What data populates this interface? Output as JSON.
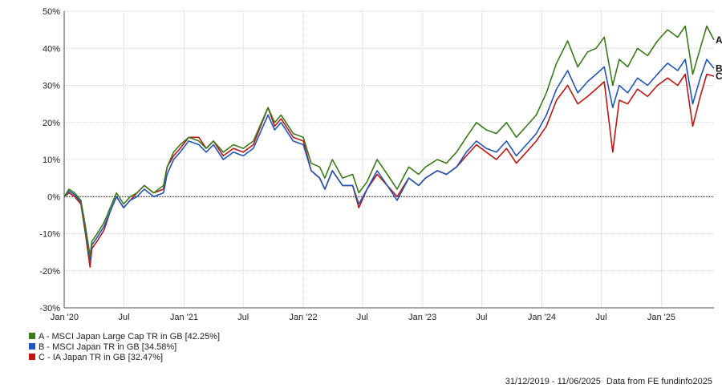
{
  "chart_data": {
    "type": "line",
    "x_range": [
      "2019-12-31",
      "2025-06-11"
    ],
    "ylim": [
      -30,
      50
    ],
    "y_ticks": [
      {
        "value": 50,
        "label": "50%"
      },
      {
        "value": 40,
        "label": "40%"
      },
      {
        "value": 30,
        "label": "30%"
      },
      {
        "value": 20,
        "label": "20%"
      },
      {
        "value": 10,
        "label": "10%"
      },
      {
        "value": 0,
        "label": "0%"
      },
      {
        "value": -10,
        "label": "-10%"
      },
      {
        "value": -20,
        "label": "-20%"
      },
      {
        "value": -30,
        "label": "-30%"
      }
    ],
    "x_ticks": [
      {
        "date": "2020-01-01",
        "label": "Jan '20"
      },
      {
        "date": "2020-07-01",
        "label": "Jul"
      },
      {
        "date": "2021-01-01",
        "label": "Jan '21"
      },
      {
        "date": "2021-07-01",
        "label": "Jul"
      },
      {
        "date": "2022-01-01",
        "label": "Jan '22"
      },
      {
        "date": "2022-07-01",
        "label": "Jul"
      },
      {
        "date": "2023-01-01",
        "label": "Jan '23"
      },
      {
        "date": "2023-07-01",
        "label": "Jul"
      },
      {
        "date": "2024-01-01",
        "label": "Jan '24"
      },
      {
        "date": "2024-07-01",
        "label": "Jul"
      },
      {
        "date": "2025-01-01",
        "label": "Jan '25"
      }
    ],
    "grid": true,
    "legend_position": "bottom-left",
    "series": [
      {
        "key": "A",
        "name": "A - MSCI Japan Large Cap TR in GB [42.25%]",
        "end_label": "A",
        "color": "#3a7a1a",
        "points": [
          [
            "2019-12-31",
            0
          ],
          [
            "2020-01-15",
            2
          ],
          [
            "2020-02-01",
            1
          ],
          [
            "2020-02-20",
            -1
          ],
          [
            "2020-03-05",
            -8
          ],
          [
            "2020-03-19",
            -16
          ],
          [
            "2020-03-25",
            -12
          ],
          [
            "2020-04-10",
            -10
          ],
          [
            "2020-05-01",
            -7
          ],
          [
            "2020-05-20",
            -3
          ],
          [
            "2020-06-08",
            1
          ],
          [
            "2020-06-30",
            -2
          ],
          [
            "2020-07-20",
            0
          ],
          [
            "2020-08-10",
            1
          ],
          [
            "2020-09-01",
            3
          ],
          [
            "2020-09-30",
            1
          ],
          [
            "2020-10-30",
            3
          ],
          [
            "2020-11-10",
            8
          ],
          [
            "2020-11-30",
            12
          ],
          [
            "2020-12-20",
            14
          ],
          [
            "2021-01-15",
            16
          ],
          [
            "2021-02-15",
            15
          ],
          [
            "2021-03-10",
            13
          ],
          [
            "2021-04-01",
            15
          ],
          [
            "2021-05-01",
            12
          ],
          [
            "2021-06-01",
            14
          ],
          [
            "2021-07-01",
            13
          ],
          [
            "2021-08-01",
            15
          ],
          [
            "2021-09-15",
            24
          ],
          [
            "2021-10-05",
            20
          ],
          [
            "2021-10-25",
            22
          ],
          [
            "2021-12-01",
            17
          ],
          [
            "2022-01-01",
            16
          ],
          [
            "2022-01-25",
            9
          ],
          [
            "2022-02-20",
            8
          ],
          [
            "2022-03-08",
            5
          ],
          [
            "2022-03-31",
            10
          ],
          [
            "2022-05-01",
            5
          ],
          [
            "2022-06-01",
            6
          ],
          [
            "2022-06-20",
            1
          ],
          [
            "2022-07-15",
            4
          ],
          [
            "2022-08-15",
            10
          ],
          [
            "2022-09-15",
            6
          ],
          [
            "2022-10-15",
            2
          ],
          [
            "2022-11-20",
            8
          ],
          [
            "2022-12-20",
            6
          ],
          [
            "2023-01-10",
            8
          ],
          [
            "2023-02-15",
            10
          ],
          [
            "2023-03-15",
            9
          ],
          [
            "2023-04-15",
            12
          ],
          [
            "2023-05-15",
            16
          ],
          [
            "2023-06-15",
            20
          ],
          [
            "2023-07-15",
            18
          ],
          [
            "2023-08-15",
            17
          ],
          [
            "2023-09-15",
            20
          ],
          [
            "2023-10-15",
            16
          ],
          [
            "2023-11-15",
            19
          ],
          [
            "2023-12-15",
            22
          ],
          [
            "2024-01-15",
            28
          ],
          [
            "2024-02-15",
            36
          ],
          [
            "2024-03-20",
            42
          ],
          [
            "2024-04-20",
            35
          ],
          [
            "2024-05-20",
            39
          ],
          [
            "2024-06-15",
            40
          ],
          [
            "2024-07-10",
            43
          ],
          [
            "2024-08-05",
            30
          ],
          [
            "2024-08-25",
            37
          ],
          [
            "2024-09-20",
            35
          ],
          [
            "2024-10-20",
            40
          ],
          [
            "2024-11-20",
            38
          ],
          [
            "2024-12-20",
            42
          ],
          [
            "2025-01-20",
            45
          ],
          [
            "2025-02-20",
            43
          ],
          [
            "2025-03-15",
            46
          ],
          [
            "2025-04-07",
            33
          ],
          [
            "2025-04-30",
            40
          ],
          [
            "2025-05-20",
            46
          ],
          [
            "2025-06-11",
            42.25
          ]
        ]
      },
      {
        "key": "B",
        "name": "B - MSCI Japan TR in GB [34.58%]",
        "end_label": "B",
        "color": "#2155b8",
        "points": [
          [
            "2019-12-31",
            0
          ],
          [
            "2020-01-15",
            1.5
          ],
          [
            "2020-02-01",
            0.5
          ],
          [
            "2020-02-20",
            -1.5
          ],
          [
            "2020-03-05",
            -9
          ],
          [
            "2020-03-19",
            -17
          ],
          [
            "2020-03-25",
            -13
          ],
          [
            "2020-04-10",
            -11
          ],
          [
            "2020-05-01",
            -8
          ],
          [
            "2020-05-20",
            -4
          ],
          [
            "2020-06-08",
            0
          ],
          [
            "2020-06-30",
            -3
          ],
          [
            "2020-07-20",
            -1
          ],
          [
            "2020-08-10",
            0
          ],
          [
            "2020-09-01",
            2
          ],
          [
            "2020-09-30",
            0
          ],
          [
            "2020-10-30",
            1
          ],
          [
            "2020-11-10",
            6
          ],
          [
            "2020-11-30",
            10
          ],
          [
            "2020-12-20",
            12
          ],
          [
            "2021-01-15",
            15
          ],
          [
            "2021-02-15",
            14
          ],
          [
            "2021-03-10",
            12
          ],
          [
            "2021-04-01",
            14
          ],
          [
            "2021-05-01",
            10
          ],
          [
            "2021-06-01",
            12
          ],
          [
            "2021-07-01",
            11
          ],
          [
            "2021-08-01",
            13
          ],
          [
            "2021-09-15",
            22
          ],
          [
            "2021-10-05",
            18
          ],
          [
            "2021-10-25",
            20
          ],
          [
            "2021-12-01",
            15
          ],
          [
            "2022-01-01",
            14
          ],
          [
            "2022-01-25",
            7
          ],
          [
            "2022-02-20",
            5
          ],
          [
            "2022-03-08",
            2
          ],
          [
            "2022-03-31",
            7
          ],
          [
            "2022-05-01",
            3
          ],
          [
            "2022-06-01",
            3
          ],
          [
            "2022-06-20",
            -2
          ],
          [
            "2022-07-15",
            2
          ],
          [
            "2022-08-15",
            7
          ],
          [
            "2022-09-15",
            3
          ],
          [
            "2022-10-15",
            -1
          ],
          [
            "2022-11-20",
            5
          ],
          [
            "2022-12-20",
            3
          ],
          [
            "2023-01-10",
            5
          ],
          [
            "2023-02-15",
            7
          ],
          [
            "2023-03-15",
            6
          ],
          [
            "2023-04-15",
            8
          ],
          [
            "2023-05-15",
            12
          ],
          [
            "2023-06-15",
            15
          ],
          [
            "2023-07-15",
            13
          ],
          [
            "2023-08-15",
            12
          ],
          [
            "2023-09-15",
            15
          ],
          [
            "2023-10-15",
            11
          ],
          [
            "2023-11-15",
            14
          ],
          [
            "2023-12-15",
            17
          ],
          [
            "2024-01-15",
            22
          ],
          [
            "2024-02-15",
            29
          ],
          [
            "2024-03-20",
            34
          ],
          [
            "2024-04-20",
            28
          ],
          [
            "2024-05-20",
            31
          ],
          [
            "2024-06-15",
            33
          ],
          [
            "2024-07-10",
            35
          ],
          [
            "2024-08-05",
            24
          ],
          [
            "2024-08-25",
            30
          ],
          [
            "2024-09-20",
            28
          ],
          [
            "2024-10-20",
            32
          ],
          [
            "2024-11-20",
            30
          ],
          [
            "2024-12-20",
            33
          ],
          [
            "2025-01-20",
            36
          ],
          [
            "2025-02-20",
            34
          ],
          [
            "2025-03-15",
            37
          ],
          [
            "2025-04-07",
            25
          ],
          [
            "2025-04-30",
            32
          ],
          [
            "2025-05-20",
            37
          ],
          [
            "2025-06-11",
            34.58
          ]
        ]
      },
      {
        "key": "C",
        "name": "C - IA Japan TR in GB [32.47%]",
        "end_label": "C",
        "color": "#c01515",
        "points": [
          [
            "2019-12-31",
            0
          ],
          [
            "2020-01-15",
            1
          ],
          [
            "2020-02-01",
            0
          ],
          [
            "2020-02-20",
            -2
          ],
          [
            "2020-03-05",
            -10
          ],
          [
            "2020-03-19",
            -19
          ],
          [
            "2020-03-25",
            -14
          ],
          [
            "2020-04-10",
            -12
          ],
          [
            "2020-05-01",
            -9
          ],
          [
            "2020-05-20",
            -4
          ],
          [
            "2020-06-08",
            0
          ],
          [
            "2020-06-30",
            -3
          ],
          [
            "2020-07-20",
            -1
          ],
          [
            "2020-08-10",
            1
          ],
          [
            "2020-09-01",
            3
          ],
          [
            "2020-09-30",
            1
          ],
          [
            "2020-10-30",
            2
          ],
          [
            "2020-11-10",
            8
          ],
          [
            "2020-11-30",
            11
          ],
          [
            "2020-12-20",
            13
          ],
          [
            "2021-01-15",
            16
          ],
          [
            "2021-02-15",
            16
          ],
          [
            "2021-03-10",
            13
          ],
          [
            "2021-04-01",
            15
          ],
          [
            "2021-05-01",
            11
          ],
          [
            "2021-06-01",
            13
          ],
          [
            "2021-07-01",
            12
          ],
          [
            "2021-08-01",
            14
          ],
          [
            "2021-09-15",
            24
          ],
          [
            "2021-10-05",
            19
          ],
          [
            "2021-10-25",
            21
          ],
          [
            "2021-12-01",
            16
          ],
          [
            "2022-01-01",
            15
          ],
          [
            "2022-01-25",
            7
          ],
          [
            "2022-02-20",
            5
          ],
          [
            "2022-03-08",
            2
          ],
          [
            "2022-03-31",
            7
          ],
          [
            "2022-05-01",
            3
          ],
          [
            "2022-06-01",
            3
          ],
          [
            "2022-06-20",
            -3
          ],
          [
            "2022-07-15",
            2
          ],
          [
            "2022-08-15",
            6
          ],
          [
            "2022-09-15",
            3
          ],
          [
            "2022-10-15",
            0
          ],
          [
            "2022-11-20",
            5
          ],
          [
            "2022-12-20",
            3
          ],
          [
            "2023-01-10",
            5
          ],
          [
            "2023-02-15",
            7
          ],
          [
            "2023-03-15",
            6
          ],
          [
            "2023-04-15",
            8
          ],
          [
            "2023-05-15",
            11
          ],
          [
            "2023-06-15",
            14
          ],
          [
            "2023-07-15",
            12
          ],
          [
            "2023-08-15",
            10
          ],
          [
            "2023-09-15",
            13
          ],
          [
            "2023-10-15",
            9
          ],
          [
            "2023-11-15",
            12
          ],
          [
            "2023-12-15",
            15
          ],
          [
            "2024-01-15",
            19
          ],
          [
            "2024-02-15",
            26
          ],
          [
            "2024-03-20",
            30
          ],
          [
            "2024-04-20",
            25
          ],
          [
            "2024-05-20",
            27
          ],
          [
            "2024-06-15",
            29
          ],
          [
            "2024-07-10",
            31
          ],
          [
            "2024-08-05",
            12
          ],
          [
            "2024-08-25",
            26
          ],
          [
            "2024-09-20",
            25
          ],
          [
            "2024-10-20",
            29
          ],
          [
            "2024-11-20",
            27
          ],
          [
            "2024-12-20",
            30
          ],
          [
            "2025-01-20",
            32
          ],
          [
            "2025-02-20",
            30
          ],
          [
            "2025-03-15",
            33
          ],
          [
            "2025-04-07",
            19
          ],
          [
            "2025-04-30",
            27
          ],
          [
            "2025-05-20",
            33
          ],
          [
            "2025-06-11",
            32.47
          ]
        ]
      }
    ]
  },
  "footer": {
    "date_range": "31/12/2019 - 11/06/2025",
    "source": "Data from FE fundinfo2025"
  }
}
